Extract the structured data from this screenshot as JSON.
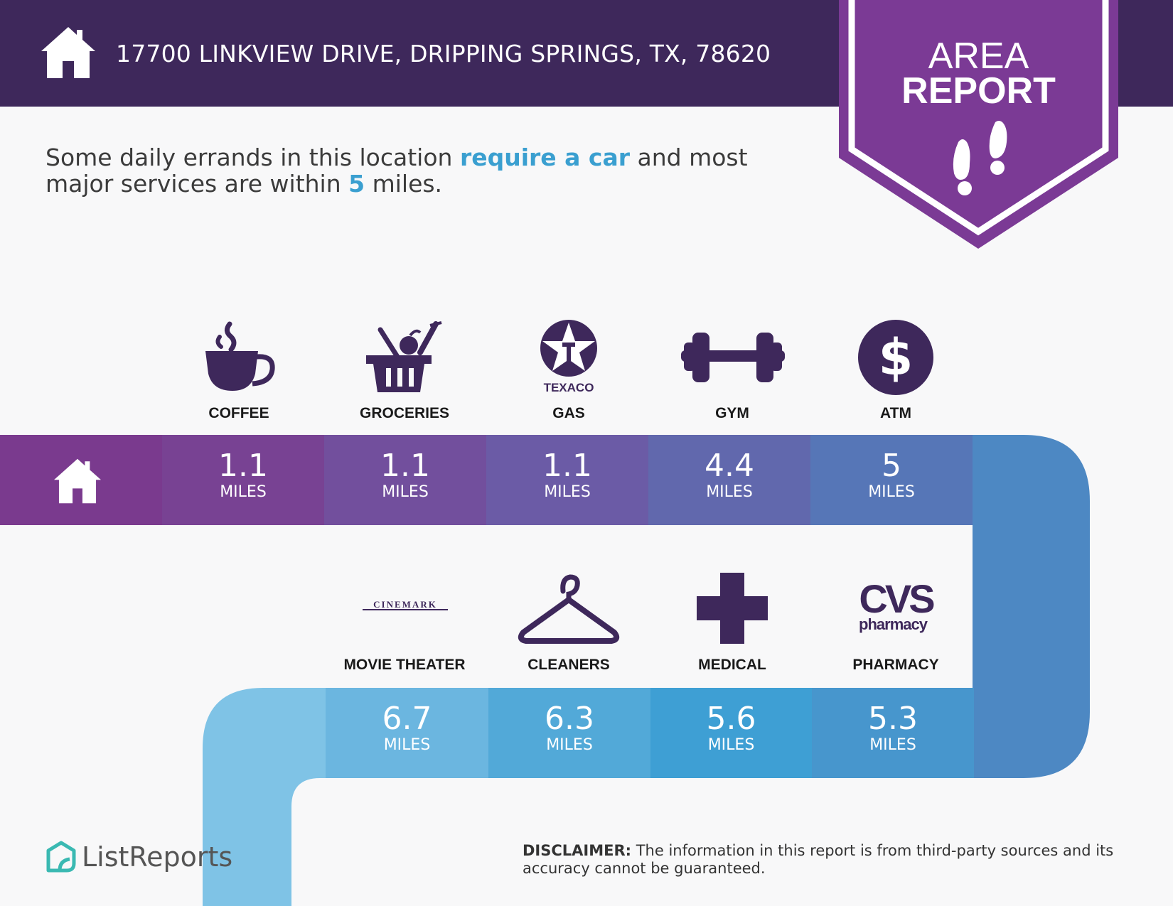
{
  "header": {
    "address": "17700 LINKVIEW DRIVE, DRIPPING SPRINGS, TX, 78620",
    "badge_line1": "AREA",
    "badge_line2": "REPORT",
    "home_icon": "home-icon",
    "feet_icon": "footprints-icon"
  },
  "summary": {
    "part1": "Some daily errands in this location ",
    "highlight1": "require a car",
    "part2": " and most major services are within ",
    "highlight2": "5",
    "part3": " miles."
  },
  "row1": [
    {
      "label": "COFFEE",
      "distance": "1.1",
      "unit": "MILES",
      "icon": "coffee-icon"
    },
    {
      "label": "GROCERIES",
      "distance": "1.1",
      "unit": "MILES",
      "icon": "grocery-basket-icon"
    },
    {
      "label": "GAS",
      "distance": "1.1",
      "unit": "MILES",
      "icon": "texaco-logo",
      "brand": "TEXACO"
    },
    {
      "label": "GYM",
      "distance": "4.4",
      "unit": "MILES",
      "icon": "dumbbell-icon"
    },
    {
      "label": "ATM",
      "distance": "5",
      "unit": "MILES",
      "icon": "dollar-icon"
    }
  ],
  "row2": [
    {
      "label": "MOVIE THEATER",
      "distance": "6.7",
      "unit": "MILES",
      "icon": "cinemark-logo",
      "brand": "CINEMARK"
    },
    {
      "label": "CLEANERS",
      "distance": "6.3",
      "unit": "MILES",
      "icon": "hanger-icon"
    },
    {
      "label": "MEDICAL",
      "distance": "5.6",
      "unit": "MILES",
      "icon": "medical-cross-icon"
    },
    {
      "label": "PHARMACY",
      "distance": "5.3",
      "unit": "MILES",
      "icon": "cvs-logo",
      "brand_top": "CVS",
      "brand_bottom": "pharmacy"
    }
  ],
  "footer": {
    "brand": "ListReports",
    "disclaimer_label": "DISCLAIMER:",
    "disclaimer_text": " The information in this report is from third-party sources and its accuracy cannot be guaranteed."
  },
  "colors": {
    "header_bg": "#3e285b",
    "badge": "#7b3a95",
    "highlight": "#3a9fd0",
    "icon": "#3e285b"
  }
}
